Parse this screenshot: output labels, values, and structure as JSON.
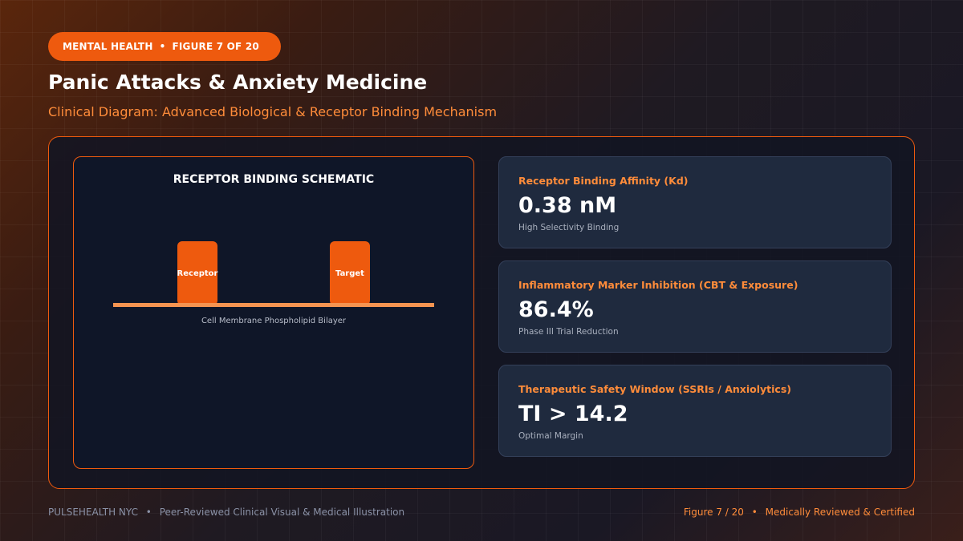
{
  "header": {
    "category": "MENTAL HEALTH",
    "separator": "•",
    "figure": "FIGURE 7 OF 20",
    "title": "Panic Attacks & Anxiety Medicine",
    "subtitle": "Clinical Diagram: Advanced Biological & Receptor Binding Mechanism"
  },
  "schematic": {
    "title": "RECEPTOR BINDING SCHEMATIC",
    "receptor_label": "Receptor",
    "target_label": "Target",
    "membrane_label": "Cell Membrane Phospholipid Bilayer"
  },
  "cards": [
    {
      "label": "Receptor Binding Affinity (Kd)",
      "value": "0.38 nM",
      "note": "High Selectivity Binding"
    },
    {
      "label": "Inflammatory Marker Inhibition (CBT & Exposure)",
      "value": "86.4%",
      "note": "Phase III Trial Reduction"
    },
    {
      "label": "Therapeutic Safety Window (SSRIs / Anxiolytics)",
      "value": "TI > 14.2",
      "note": "Optimal Margin"
    }
  ],
  "footer": {
    "brand": "PULSEHEALTH NYC",
    "separator": "•",
    "tagline": "Peer-Reviewed Clinical Visual & Medical Illustration",
    "figure": "Figure 7 / 20",
    "certification": "Medically Reviewed & Certified"
  },
  "colors": {
    "accent": "#ee5a0e",
    "accent_text": "#ff8c3a",
    "membrane": "#f59451",
    "card_bg": "#1f2a3e",
    "schematic_bg": "#0f1628"
  }
}
